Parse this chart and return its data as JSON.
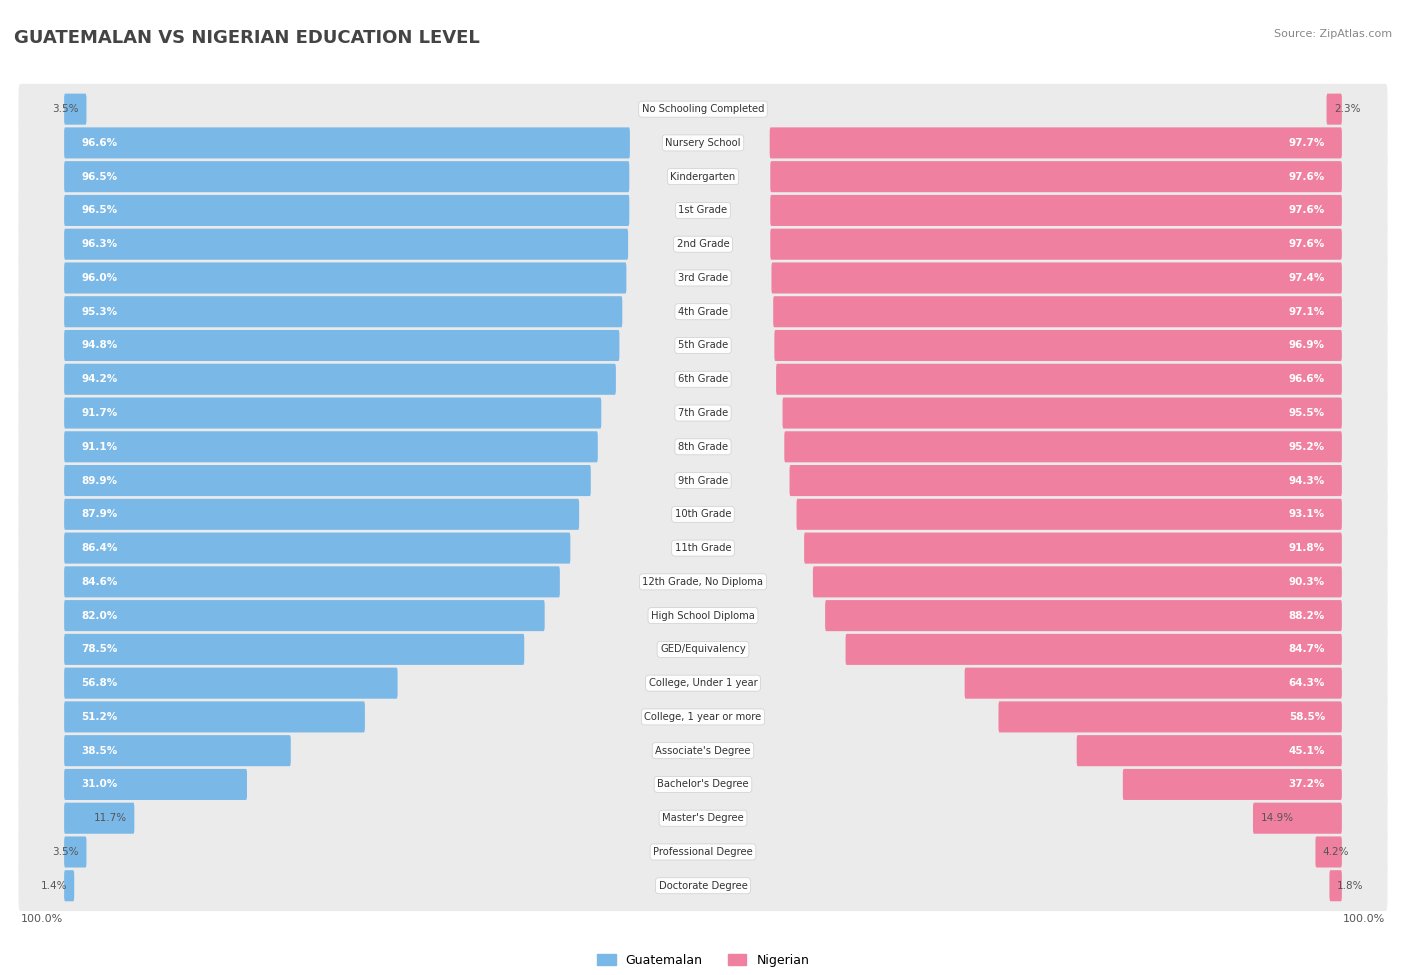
{
  "title": "GUATEMALAN VS NIGERIAN EDUCATION LEVEL",
  "source": "Source: ZipAtlas.com",
  "categories": [
    "No Schooling Completed",
    "Nursery School",
    "Kindergarten",
    "1st Grade",
    "2nd Grade",
    "3rd Grade",
    "4th Grade",
    "5th Grade",
    "6th Grade",
    "7th Grade",
    "8th Grade",
    "9th Grade",
    "10th Grade",
    "11th Grade",
    "12th Grade, No Diploma",
    "High School Diploma",
    "GED/Equivalency",
    "College, Under 1 year",
    "College, 1 year or more",
    "Associate's Degree",
    "Bachelor's Degree",
    "Master's Degree",
    "Professional Degree",
    "Doctorate Degree"
  ],
  "guatemalan": [
    3.5,
    96.6,
    96.5,
    96.5,
    96.3,
    96.0,
    95.3,
    94.8,
    94.2,
    91.7,
    91.1,
    89.9,
    87.9,
    86.4,
    84.6,
    82.0,
    78.5,
    56.8,
    51.2,
    38.5,
    31.0,
    11.7,
    3.5,
    1.4
  ],
  "nigerian": [
    2.3,
    97.7,
    97.6,
    97.6,
    97.6,
    97.4,
    97.1,
    96.9,
    96.6,
    95.5,
    95.2,
    94.3,
    93.1,
    91.8,
    90.3,
    88.2,
    84.7,
    64.3,
    58.5,
    45.1,
    37.2,
    14.9,
    4.2,
    1.8
  ],
  "guatemalan_color": "#7ab8e8",
  "nigerian_color": "#f080a0",
  "row_bg_color": "#ebebeb",
  "fig_bg_color": "#ffffff",
  "title_color": "#444444",
  "label_color_inside": "#ffffff",
  "label_color_outside": "#666666",
  "cat_label_color": "#333333",
  "fig_width": 14.06,
  "fig_height": 9.75,
  "threshold_inside": 15
}
